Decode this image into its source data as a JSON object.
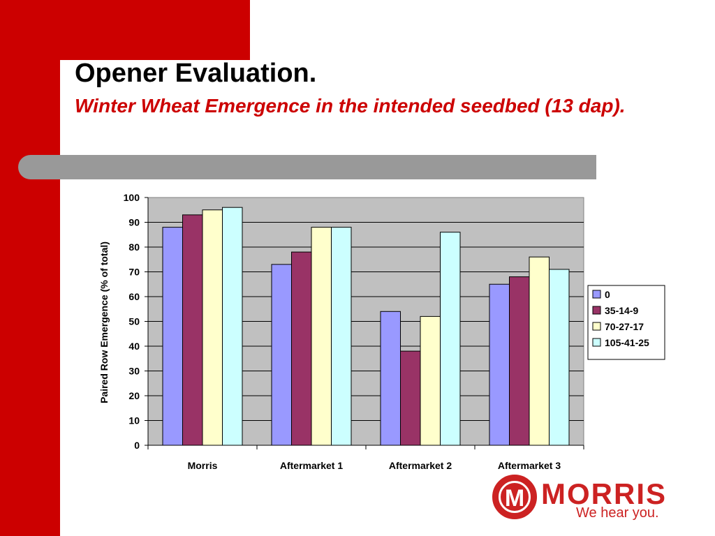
{
  "slide": {
    "title": "Opener Evaluation.",
    "subtitle": "Winter Wheat Emergence in the intended seedbed (13 dap)."
  },
  "colors": {
    "brand_red": "#cc0000",
    "band_gray": "#999999",
    "plot_bg": "#c0c0c0"
  },
  "chart_data": {
    "type": "bar",
    "title": "",
    "xlabel": "",
    "ylabel": "Paired Row Emergence (% of total)",
    "ylim": [
      0,
      100
    ],
    "yticks": [
      0,
      10,
      20,
      30,
      40,
      50,
      60,
      70,
      80,
      90,
      100
    ],
    "categories": [
      "Morris",
      "Aftermarket 1",
      "Aftermarket 2",
      "Aftermarket 3"
    ],
    "series": [
      {
        "name": "0",
        "color": "#9999ff",
        "values": [
          88,
          73,
          54,
          65
        ]
      },
      {
        "name": "35-14-9",
        "color": "#993366",
        "values": [
          93,
          78,
          38,
          68
        ]
      },
      {
        "name": "70-27-17",
        "color": "#ffffcc",
        "values": [
          95,
          88,
          52,
          76
        ]
      },
      {
        "name": "105-41-25",
        "color": "#ccffff",
        "values": [
          96,
          88,
          86,
          71
        ]
      }
    ],
    "grid": true,
    "legend_position": "right"
  },
  "logo": {
    "mark": "M",
    "name": "MORRIS",
    "tagline": "We hear you."
  }
}
